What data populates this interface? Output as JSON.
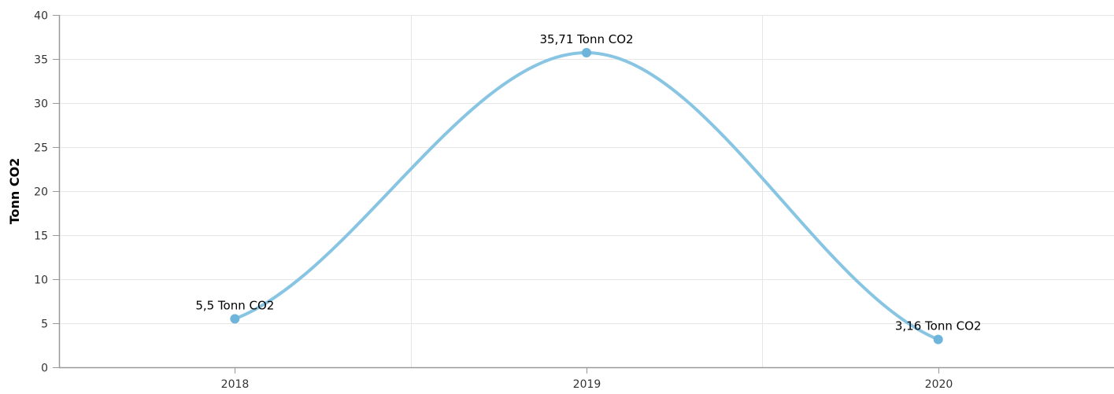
{
  "chart_data": {
    "type": "line",
    "title": "",
    "xlabel": "",
    "ylabel": "Tonn CO2",
    "categories": [
      "2018",
      "2019",
      "2020"
    ],
    "series": [
      {
        "values": [
          5.5,
          35.71,
          3.16
        ],
        "data_labels": [
          "5,5 Tonn CO2",
          "35,71 Tonn CO2",
          "3,16 Tonn CO2"
        ],
        "color": "#87c5e3",
        "marker_color": "#6fb4da"
      }
    ],
    "ylim": [
      0,
      40
    ],
    "yticks": [
      "0",
      "5",
      "10",
      "15",
      "20",
      "25",
      "30",
      "35",
      "40"
    ],
    "curve": "smooth",
    "grid": {
      "horizontal": true,
      "vertical": true
    },
    "legend": "none"
  }
}
